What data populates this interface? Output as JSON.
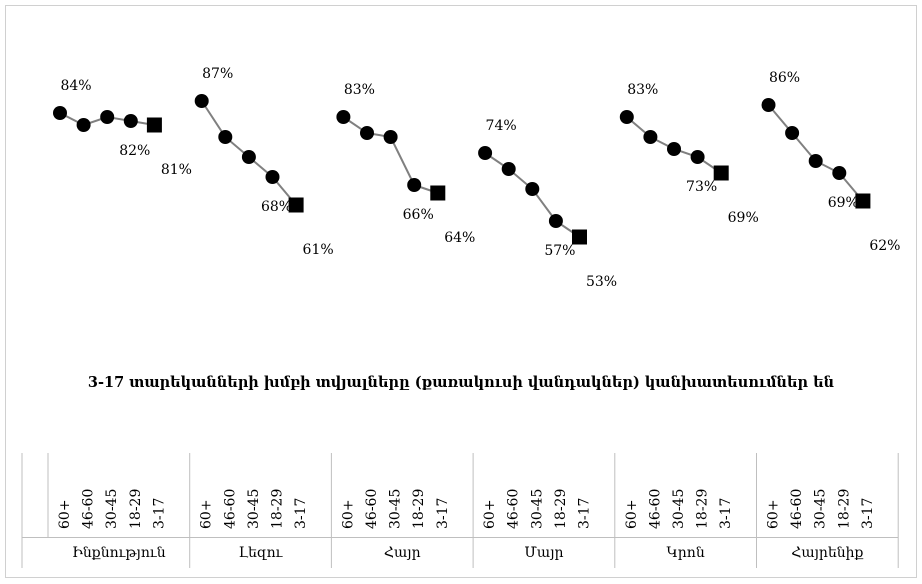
{
  "chart_data": {
    "type": "line",
    "categories": [
      "60+",
      "46-60",
      "30-45",
      "18-29",
      "3-17"
    ],
    "groups": [
      {
        "name": "Ինքնություն",
        "values": [
          84,
          81,
          83,
          82,
          81
        ],
        "value_labels": [
          "84%",
          null,
          null,
          "82%",
          "81%"
        ]
      },
      {
        "name": "Լեզու",
        "values": [
          87,
          78,
          73,
          68,
          61
        ],
        "value_labels": [
          "87%",
          null,
          null,
          "68%",
          "61%"
        ]
      },
      {
        "name": "Հայր",
        "values": [
          83,
          79,
          78,
          66,
          64
        ],
        "value_labels": [
          "83%",
          null,
          null,
          "66%",
          "64%"
        ]
      },
      {
        "name": "Մայր",
        "values": [
          74,
          70,
          65,
          57,
          53
        ],
        "value_labels": [
          "74%",
          null,
          null,
          "57%",
          "53%"
        ]
      },
      {
        "name": "Կրոն",
        "values": [
          83,
          78,
          75,
          73,
          69
        ],
        "value_labels": [
          "83%",
          null,
          null,
          "73%",
          "69%"
        ]
      },
      {
        "name": "Հայրենիք",
        "values": [
          86,
          79,
          72,
          69,
          62
        ],
        "value_labels": [
          "86%",
          null,
          null,
          "69%",
          "62%"
        ]
      }
    ],
    "line_color": "#808080",
    "marker_color": "#000000",
    "ylim": [
      40,
      95
    ],
    "annotation": "3-17 տարեկանների խմբի տվյալները (քառակուսի վանդակներ) կանխատեսումներ են"
  }
}
